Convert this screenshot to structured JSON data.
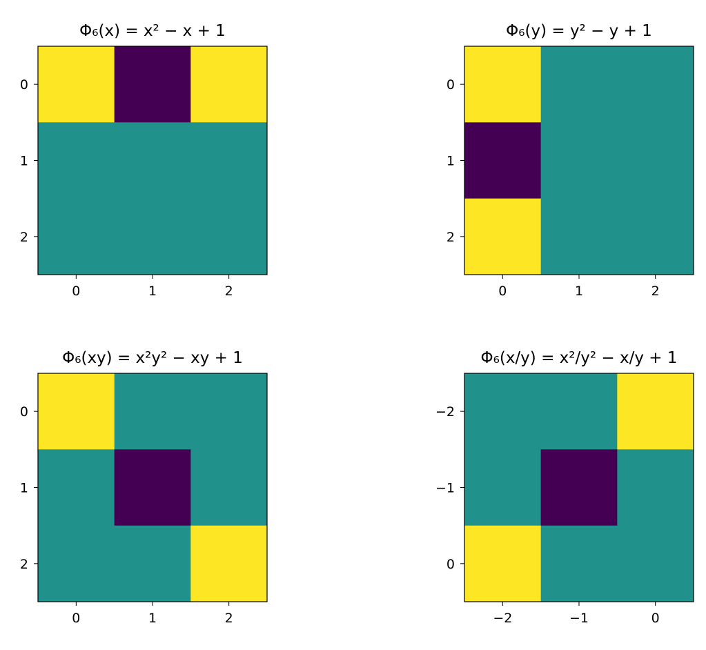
{
  "chart_data": [
    {
      "type": "heatmap",
      "title": "Φ₆(x) = x² − x + 1",
      "x_ticks": [
        "0",
        "1",
        "2"
      ],
      "y_ticks": [
        "0",
        "1",
        "2"
      ],
      "values": [
        [
          1,
          -1,
          1
        ],
        [
          0,
          0,
          0
        ],
        [
          0,
          0,
          0
        ]
      ],
      "colormap": "viridis"
    },
    {
      "type": "heatmap",
      "title": "Φ₆(y) = y² − y + 1",
      "x_ticks": [
        "0",
        "1",
        "2"
      ],
      "y_ticks": [
        "0",
        "1",
        "2"
      ],
      "values": [
        [
          1,
          0,
          0
        ],
        [
          -1,
          0,
          0
        ],
        [
          1,
          0,
          0
        ]
      ],
      "colormap": "viridis"
    },
    {
      "type": "heatmap",
      "title": "Φ₆(xy) = x²y² − xy + 1",
      "x_ticks": [
        "0",
        "1",
        "2"
      ],
      "y_ticks": [
        "0",
        "1",
        "2"
      ],
      "values": [
        [
          1,
          0,
          0
        ],
        [
          0,
          -1,
          0
        ],
        [
          0,
          0,
          1
        ]
      ],
      "colormap": "viridis"
    },
    {
      "type": "heatmap",
      "title": "Φ₆(x/y) = x²/y² − x/y + 1",
      "x_ticks": [
        "−2",
        "−1",
        "0"
      ],
      "y_ticks": [
        "−2",
        "−1",
        "0"
      ],
      "values": [
        [
          0,
          0,
          1
        ],
        [
          0,
          -1,
          0
        ],
        [
          1,
          0,
          0
        ]
      ],
      "colormap": "viridis"
    }
  ],
  "colors": {
    "-1": "#440154",
    "0": "#21918c",
    "1": "#fde725"
  }
}
